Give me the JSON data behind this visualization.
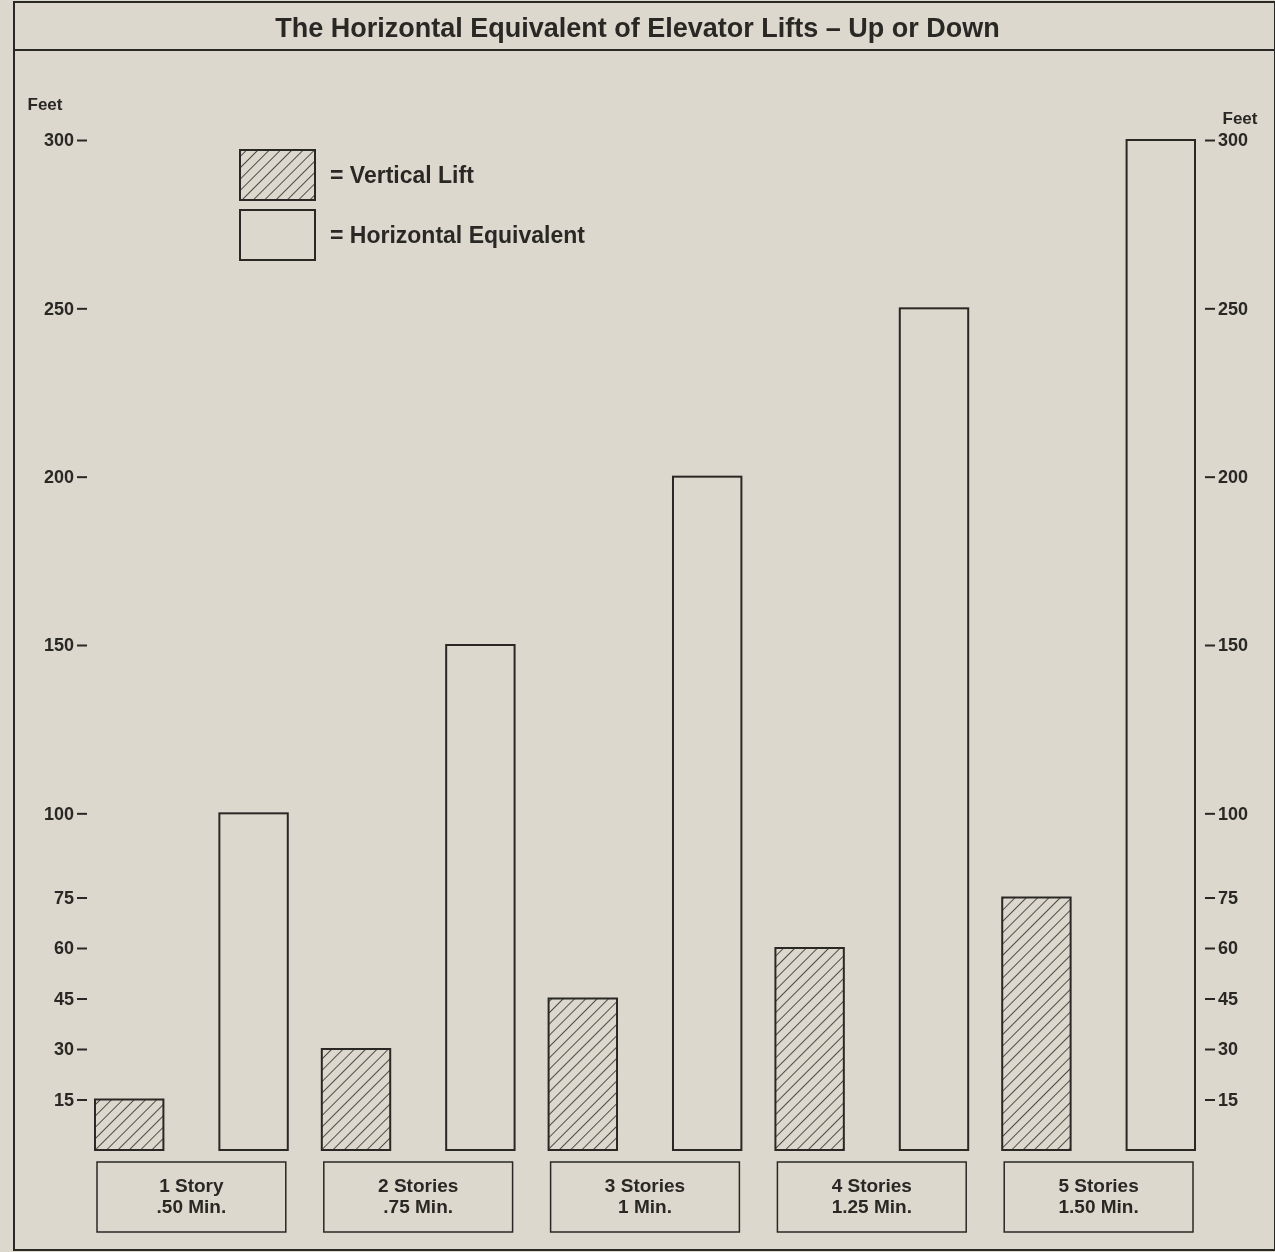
{
  "chart_data": {
    "type": "bar",
    "title": "The Horizontal Equivalent of Elevator Lifts – Up or Down",
    "categories": [
      "1 Story\n.50 Min.",
      "2 Stories\n.75 Min.",
      "3 Stories\n1 Min.",
      "4 Stories\n1.25 Min.",
      "5 Stories\n1.50 Min."
    ],
    "series": [
      {
        "name": "= Vertical Lift",
        "color": "#2a2824",
        "values": [
          15,
          30,
          45,
          60,
          75
        ]
      },
      {
        "name": "= Horizontal Equivalent",
        "color": "#dcd8ce",
        "values": [
          100,
          150,
          200,
          250,
          300
        ]
      }
    ],
    "ylabel": "Feet",
    "y2label": "Feet",
    "ylim": [
      0,
      300
    ],
    "yticks": [
      15,
      30,
      45,
      60,
      75,
      100,
      150,
      200,
      250,
      300
    ],
    "y2lim": [
      0,
      300
    ],
    "y2ticks": [
      15,
      30,
      45,
      60,
      75,
      100,
      150,
      200,
      250,
      300
    ],
    "legend": "top left"
  }
}
